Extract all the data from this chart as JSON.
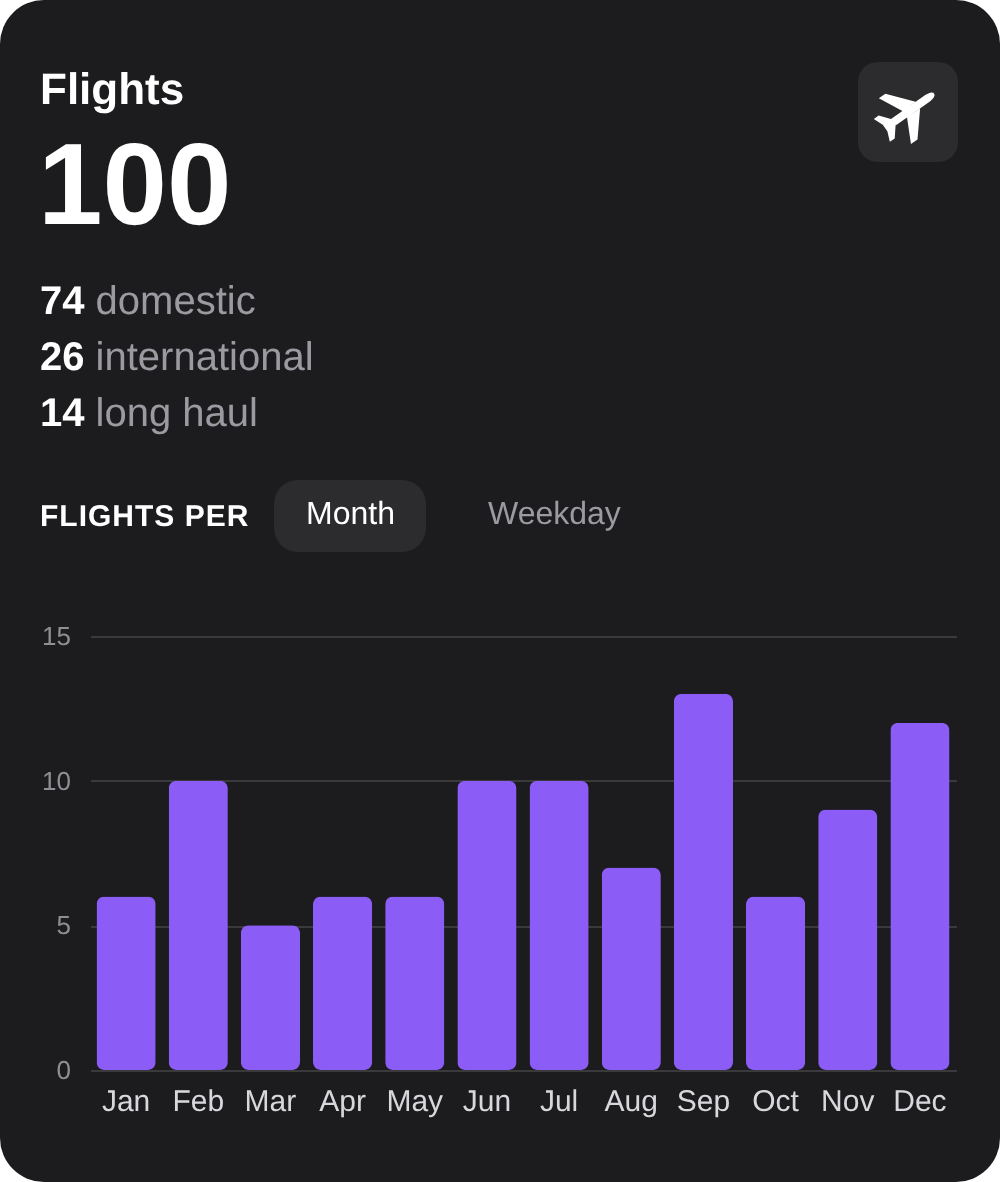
{
  "chart_data": {
    "type": "bar",
    "title": "Flights",
    "annotations": [
      "100",
      "74 domestic",
      "26 international",
      "14 long haul",
      "FLIGHTS PER",
      "Month",
      "Weekday"
    ],
    "categories": [
      "Jan",
      "Feb",
      "Mar",
      "Apr",
      "May",
      "Jun",
      "Jul",
      "Aug",
      "Sep",
      "Oct",
      "Nov",
      "Dec"
    ],
    "values": [
      6,
      10,
      5,
      6,
      6,
      10,
      10,
      7,
      13,
      6,
      9,
      12
    ],
    "color": "#8b5cf6",
    "ylim": [
      0,
      15
    ],
    "yticks": [
      0,
      5,
      10,
      15
    ],
    "grid": "y"
  }
}
